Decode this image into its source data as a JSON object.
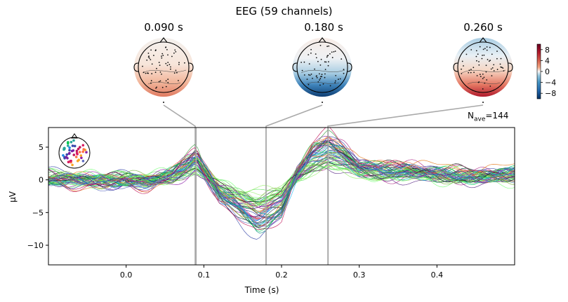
{
  "title": "EEG (59 channels)",
  "nave_label": "N",
  "nave_sub": "ave",
  "nave_value": "=144",
  "topomaps": [
    {
      "time_label": "0.090 s",
      "pattern": "positive-posterior"
    },
    {
      "time_label": "0.180 s",
      "pattern": "negative-posterior"
    },
    {
      "time_label": "0.260 s",
      "pattern": "positive-posterior-strong"
    }
  ],
  "colorbar": {
    "ticks": [
      "8",
      "4",
      "0",
      "−4",
      "−8"
    ],
    "tick_values": [
      8,
      4,
      0,
      -4,
      -8
    ],
    "range": [
      -10,
      10
    ],
    "colormap": "RdBu_r"
  },
  "chart_data": {
    "type": "line",
    "xlabel": "Time (s)",
    "ylabel": "µV",
    "xlim": [
      -0.1,
      0.5
    ],
    "ylim": [
      -13,
      8
    ],
    "xticks": [
      0.0,
      0.1,
      0.2,
      0.3,
      0.4
    ],
    "xtick_labels": [
      "0.0",
      "0.1",
      "0.2",
      "0.3",
      "0.4"
    ],
    "yticks": [
      5,
      0,
      -5,
      -10
    ],
    "ytick_labels": [
      "5",
      "0",
      "−5",
      "−10"
    ],
    "n_channels": 59,
    "highlight_times": [
      0.09,
      0.18,
      0.26
    ],
    "mean_profile": {
      "t": [
        -0.1,
        -0.05,
        0.0,
        0.03,
        0.06,
        0.075,
        0.09,
        0.1,
        0.12,
        0.15,
        0.17,
        0.18,
        0.2,
        0.22,
        0.24,
        0.26,
        0.28,
        0.3,
        0.33,
        0.36,
        0.4,
        0.45,
        0.5
      ],
      "v": [
        0.2,
        0.0,
        0.0,
        -0.3,
        1.0,
        2.2,
        3.5,
        1.5,
        -2.0,
        -4.5,
        -6.0,
        -5.5,
        -4.0,
        1.0,
        4.0,
        5.2,
        4.0,
        2.0,
        1.5,
        1.5,
        1.0,
        0.5,
        1.0
      ]
    }
  }
}
